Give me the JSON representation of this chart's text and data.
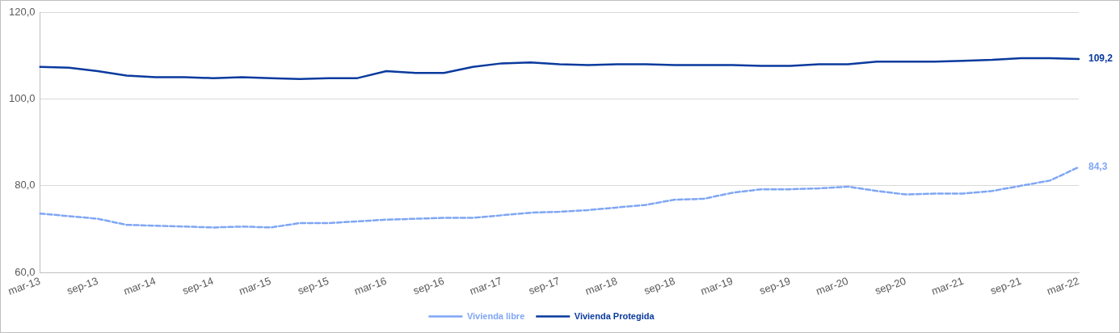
{
  "chart_data": {
    "type": "line",
    "categories": [
      "mar-13",
      null,
      "sep-13",
      null,
      "mar-14",
      null,
      "sep-14",
      null,
      "mar-15",
      null,
      "sep-15",
      null,
      "mar-16",
      null,
      "sep-16",
      null,
      "mar-17",
      null,
      "sep-17",
      null,
      "mar-18",
      null,
      "sep-18",
      null,
      "mar-19",
      null,
      "sep-19",
      null,
      "mar-20",
      null,
      "sep-20",
      null,
      "mar-21",
      null,
      "sep-21",
      null,
      "mar-22"
    ],
    "series": [
      {
        "name": "Vivienda libre",
        "color": "#7fa6f5",
        "line_style": "dashed",
        "values": [
          73.6,
          73.0,
          72.4,
          71.0,
          70.8,
          70.6,
          70.4,
          70.6,
          70.4,
          71.4,
          71.4,
          71.8,
          72.2,
          72.4,
          72.6,
          72.6,
          73.2,
          73.8,
          74.0,
          74.4,
          75.0,
          75.6,
          76.8,
          77.0,
          78.4,
          79.2,
          79.2,
          79.4,
          79.8,
          78.8,
          78.0,
          78.2,
          78.2,
          78.8,
          80.0,
          81.2,
          84.3
        ]
      },
      {
        "name": "Vivienda Protegida",
        "color": "#0a3a9e",
        "line_style": "solid",
        "values": [
          107.4,
          107.2,
          106.4,
          105.4,
          105.0,
          105.0,
          104.8,
          105.0,
          104.8,
          104.6,
          104.8,
          104.8,
          106.4,
          106.0,
          106.0,
          107.4,
          108.2,
          108.4,
          108.0,
          107.8,
          108.0,
          108.0,
          107.8,
          107.8,
          107.8,
          107.6,
          107.6,
          108.0,
          108.0,
          108.6,
          108.6,
          108.6,
          108.8,
          109.0,
          109.4,
          109.4,
          109.2
        ]
      }
    ],
    "ylim": [
      60,
      120
    ],
    "yticks": [
      {
        "value": 60,
        "label": "60,0"
      },
      {
        "value": 80,
        "label": "80,0"
      },
      {
        "value": 100,
        "label": "100,0"
      },
      {
        "value": 120,
        "label": "120,0"
      }
    ],
    "grid": "y",
    "legend": "bottom",
    "marker": "none",
    "annotations": [
      {
        "text": "109,2",
        "x": "mar-22",
        "y": 109.2
      },
      {
        "text": "84,3",
        "x": "mar-22",
        "y": 84.3
      }
    ]
  }
}
